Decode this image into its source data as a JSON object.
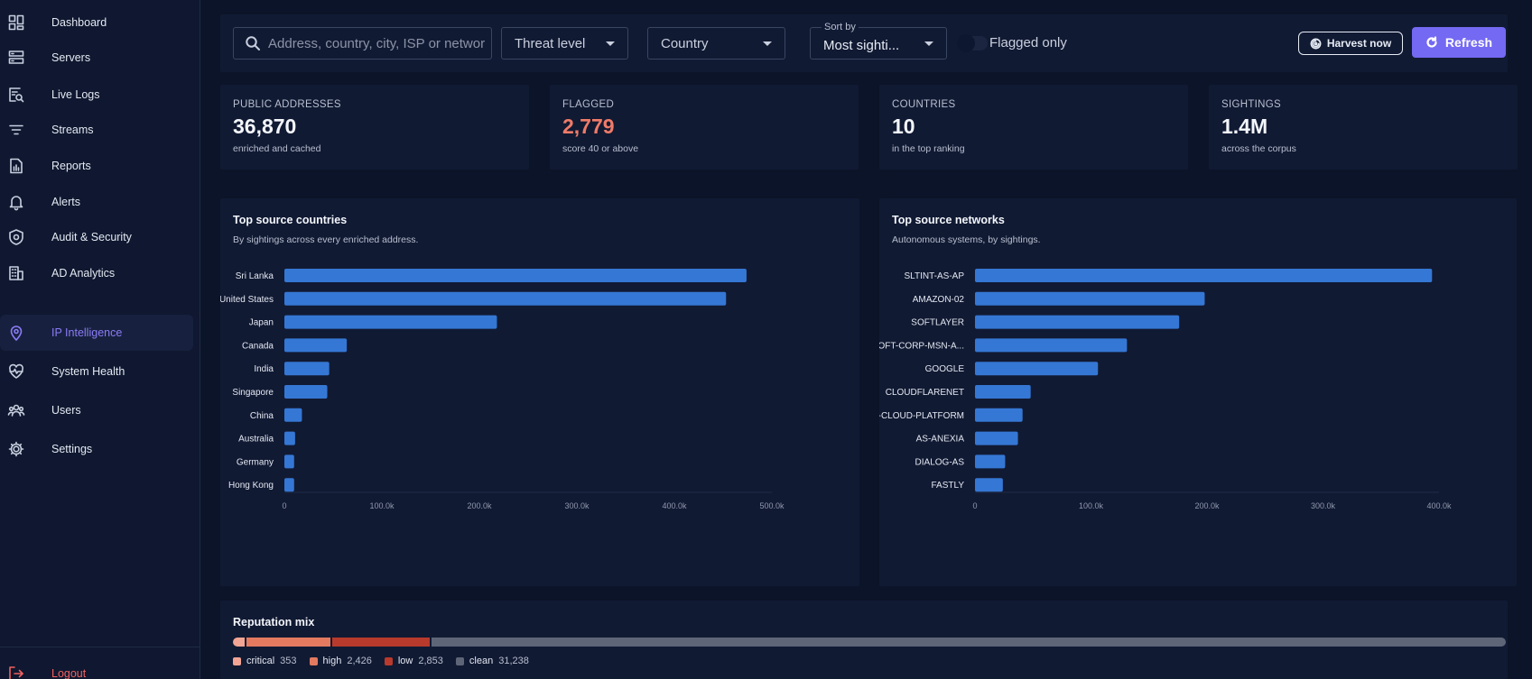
{
  "sidebar": {
    "items": [
      {
        "label": "Dashboard",
        "icon": "grid-icon"
      },
      {
        "label": "Servers",
        "icon": "server-icon"
      },
      {
        "label": "Live Logs",
        "icon": "log-search-icon"
      },
      {
        "label": "Streams",
        "icon": "filter-lines-icon"
      },
      {
        "label": "Reports",
        "icon": "report-icon"
      },
      {
        "label": "Alerts",
        "icon": "bell-icon"
      },
      {
        "label": "Audit & Security",
        "icon": "shield-icon"
      },
      {
        "label": "AD Analytics",
        "icon": "building-icon"
      },
      {
        "label": "IP Intelligence",
        "icon": "location-pin-icon",
        "active": true
      },
      {
        "label": "System Health",
        "icon": "heartbeat-icon"
      },
      {
        "label": "Users",
        "icon": "users-icon"
      },
      {
        "label": "Settings",
        "icon": "gear-icon"
      }
    ],
    "logout": {
      "label": "Logout",
      "icon": "logout-icon"
    }
  },
  "toolbar": {
    "search_placeholder": "Address, country, city, ISP or network",
    "threat_level": "Threat level",
    "country": "Country",
    "sort_label": "Sort by",
    "sort_value": "Most sighti...",
    "flagged_only_label": "Flagged only",
    "flagged_only_on": false,
    "harvest_label": "Harvest now",
    "refresh_label": "Refresh"
  },
  "stats": [
    {
      "title": "PUBLIC ADDRESSES",
      "value": "36,870",
      "sub": "enriched and cached"
    },
    {
      "title": "FLAGGED",
      "value": "2,779",
      "sub": "score 40 or above"
    },
    {
      "title": "COUNTRIES",
      "value": "10",
      "sub": "in the top ranking"
    },
    {
      "title": "SIGHTINGS",
      "value": "1.4M",
      "sub": "across the corpus"
    }
  ],
  "colors": {
    "accent": "#7469f2",
    "bar": "#3577d4",
    "flagged": "#ef7b68"
  },
  "chart_data": [
    {
      "type": "bar",
      "orientation": "horizontal",
      "title": "Top source countries",
      "subtitle": "By sightings across every enriched address.",
      "categories": [
        "Sri Lanka",
        "United States",
        "Japan",
        "Canada",
        "India",
        "Singapore",
        "China",
        "Australia",
        "Germany",
        "Hong Kong"
      ],
      "values": [
        474000,
        453000,
        218000,
        64000,
        46000,
        44000,
        18000,
        11000,
        10000,
        10000
      ],
      "xlim": [
        0,
        500000
      ],
      "ticks": [
        0,
        100000,
        200000,
        300000,
        400000,
        500000
      ],
      "tick_labels": [
        "0",
        "100.0k",
        "200.0k",
        "300.0k",
        "400.0k",
        "500.0k"
      ]
    },
    {
      "type": "bar",
      "orientation": "horizontal",
      "title": "Top source networks",
      "subtitle": "Autonomous systems, by sightings.",
      "categories": [
        "SLTINT-AS-AP",
        "AMAZON-02",
        "SOFTLAYER",
        "MICROSOFT-CORP-MSN-A...",
        "GOOGLE",
        "CLOUDFLARENET",
        "GOOGLE-CLOUD-PLATFORM",
        "AS-ANEXIA",
        "DIALOG-AS",
        "FASTLY"
      ],
      "values": [
        394000,
        198000,
        176000,
        131000,
        106000,
        48000,
        41000,
        37000,
        26000,
        24000
      ],
      "xlim": [
        0,
        400000
      ],
      "ticks": [
        0,
        100000,
        200000,
        300000,
        400000
      ],
      "tick_labels": [
        "0",
        "100.0k",
        "200.0k",
        "300.0k",
        "400.0k"
      ]
    }
  ],
  "reputation": {
    "title": "Reputation mix",
    "segments": [
      {
        "name": "critical",
        "count": 353,
        "label": "353",
        "color": "#f2a594"
      },
      {
        "name": "high",
        "count": 2426,
        "label": "2,426",
        "color": "#e37a60"
      },
      {
        "name": "low",
        "count": 2853,
        "label": "2,853",
        "color": "#b83a2c"
      },
      {
        "name": "clean",
        "count": 31238,
        "label": "31,238",
        "color": "#5d6577"
      }
    ]
  }
}
